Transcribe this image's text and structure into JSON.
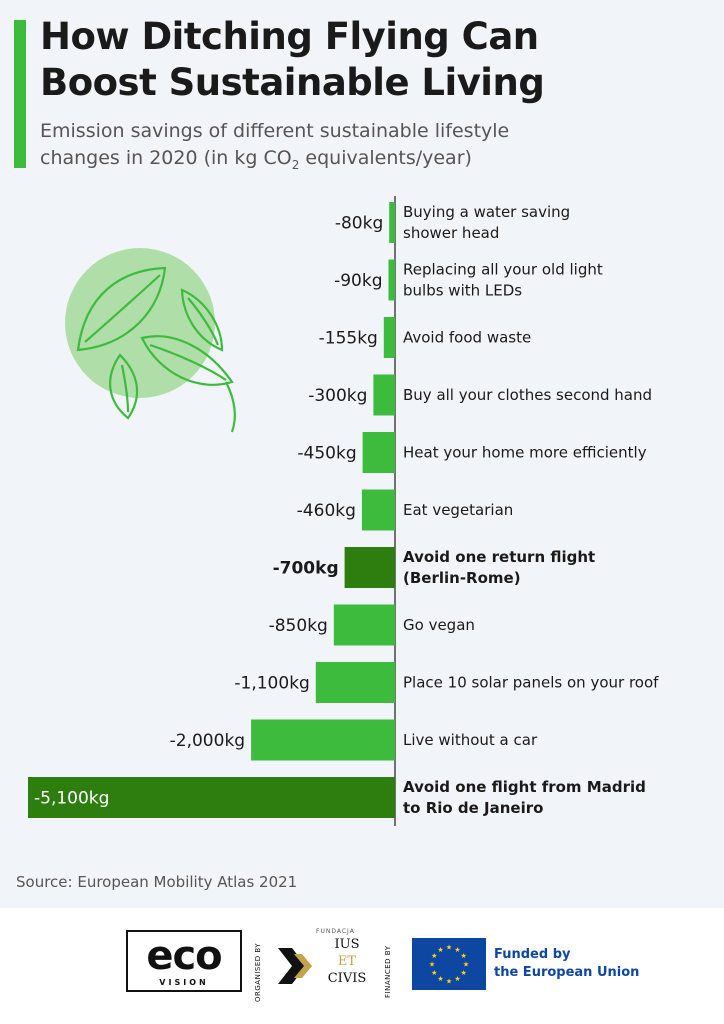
{
  "header": {
    "title_line1": "How Ditching Flying Can",
    "title_line2": "Boost Sustainable Living",
    "subtitle_line1": "Emission savings of different sustainable lifestyle",
    "subtitle_line2_pre": "changes in 2020 (in kg CO",
    "subtitle_line2_sub": "2",
    "subtitle_line2_post": " equivalents/year)"
  },
  "colors": {
    "accent": "#3dbb3d",
    "bar": "#3dbb3d",
    "bar_highlight": "#2e7d0f",
    "circle": "#a8dca0",
    "eu_blue": "#0e47a1",
    "eu_star": "#ffd617"
  },
  "chart_data": {
    "type": "bar",
    "orientation": "horizontal",
    "direction": "negative",
    "unit": "kg",
    "categories": [
      [
        "Buying a water saving",
        "shower head"
      ],
      [
        "Replacing all your old light",
        "bulbs with LEDs"
      ],
      [
        "Avoid food waste"
      ],
      [
        "Buy all your clothes second hand"
      ],
      [
        "Heat your home more efficiently"
      ],
      [
        "Eat vegetarian"
      ],
      [
        "Avoid one return flight",
        "(Berlin-Rome)"
      ],
      [
        "Go vegan"
      ],
      [
        "Place 10 solar panels on your roof"
      ],
      [
        "Live without a car"
      ],
      [
        "Avoid one flight from Madrid",
        "to Rio de Janeiro"
      ]
    ],
    "values": [
      -80,
      -90,
      -155,
      -300,
      -450,
      -460,
      -700,
      -850,
      -1100,
      -2000,
      -5100
    ],
    "value_labels": [
      "-80kg",
      "-90kg",
      "-155kg",
      "-300kg",
      "-450kg",
      "-460kg",
      "-700kg",
      "-850kg",
      "-1,100kg",
      "-2,000kg",
      "-5,100kg"
    ],
    "highlighted": [
      6,
      10
    ],
    "xlim": [
      -5100,
      0
    ],
    "grid": false,
    "legend": "none"
  },
  "source": "Source: European Mobility Atlas 2021",
  "footer": {
    "eco_word": "eco",
    "eco_sub": "VISION",
    "organised_by": "ORGANISED BY",
    "fundacja": "FUNDACJA",
    "ius": "IUS",
    "et": "ET",
    "civis": "CIVIS",
    "financed_by": "FINANCED BY",
    "eu_line1": "Funded by",
    "eu_line2": "the European Union"
  },
  "icons": {
    "decoration": "leaves-icon",
    "eu_flag": "eu-flag-icon",
    "ius_logo": "chevron-logo-icon"
  }
}
